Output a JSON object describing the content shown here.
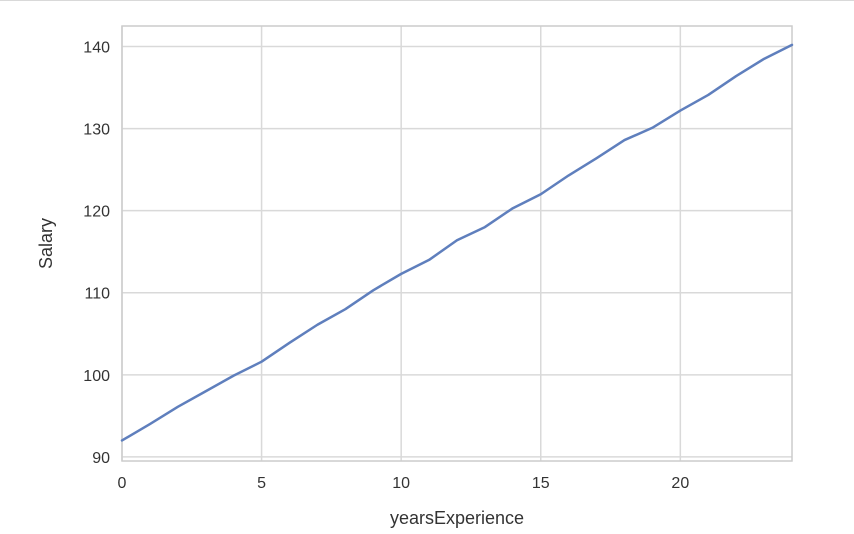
{
  "chart_data": {
    "type": "line",
    "title": "",
    "xlabel": "yearsExperience",
    "ylabel": "Salary",
    "xlim": [
      0,
      24
    ],
    "ylim": [
      89.5,
      142.5
    ],
    "xticks": [
      0,
      5,
      10,
      15,
      20
    ],
    "yticks": [
      90,
      100,
      110,
      120,
      130,
      140
    ],
    "grid": true,
    "series": [
      {
        "color": "#5f7fbd",
        "x": [
          0,
          1,
          2,
          3,
          4,
          5,
          6,
          7,
          8,
          9,
          10,
          11,
          12,
          13,
          14,
          15,
          16,
          17,
          18,
          19,
          20,
          21,
          22,
          23,
          24
        ],
        "y": [
          92.0,
          94.0,
          96.1,
          98.0,
          99.9,
          101.6,
          103.9,
          106.1,
          108.0,
          110.3,
          112.3,
          114.0,
          116.4,
          118.0,
          120.3,
          122.0,
          124.3,
          126.4,
          128.6,
          130.1,
          132.2,
          134.1,
          136.4,
          138.5,
          140.2
        ]
      }
    ]
  }
}
